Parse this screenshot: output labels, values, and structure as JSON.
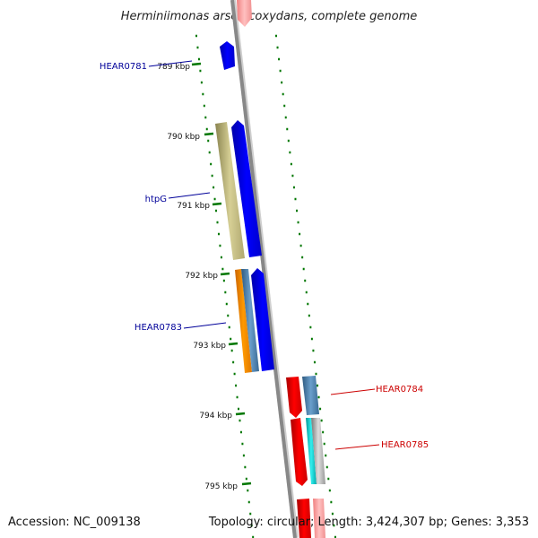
{
  "title": "Herminiimonas arsenicoxydans, complete genome",
  "footer": {
    "accession": "Accession: NC_009138",
    "topology": "Topology: circular; Length: 3,424,307 bp; Genes: 3,353"
  },
  "ticks": [
    "789 kbp",
    "790 kbp",
    "791 kbp",
    "792 kbp",
    "793 kbp",
    "794 kbp",
    "795 kbp"
  ],
  "genes_left": [
    {
      "label": "HEAR0781",
      "color": "#000099"
    },
    {
      "label": "htpG",
      "color": "#000099"
    },
    {
      "label": "HEAR0783",
      "color": "#000099"
    }
  ],
  "genes_right": [
    {
      "label": "HEAR0784",
      "color": "#cc0000"
    },
    {
      "label": "HEAR0785",
      "color": "#cc0000"
    }
  ],
  "colors": {
    "forward_strand": "#0000ee",
    "reverse_strand": "#ee0000",
    "backbone": "#888888",
    "tick_marks": "#007700",
    "htpG_gene": "#c8c080",
    "orange_gene": "#ff9900",
    "steelblue_gene": "#4682b4",
    "cyan_gene": "#00cccc"
  }
}
